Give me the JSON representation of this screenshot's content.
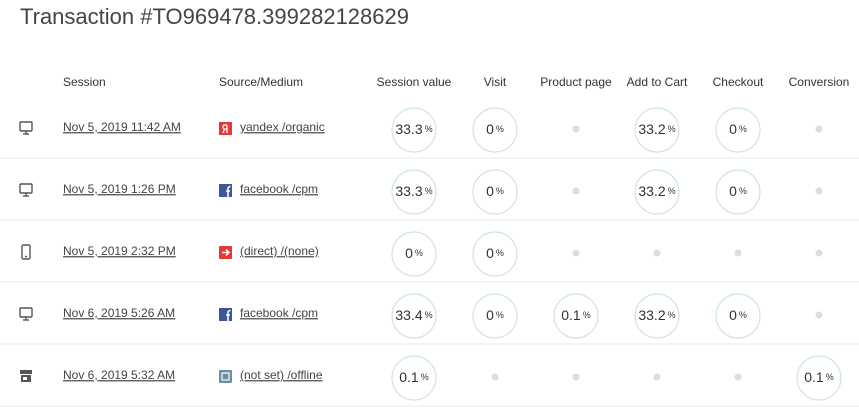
{
  "title": "Transaction #TO969478.399282128629",
  "table": {
    "columns": [
      "Session",
      "Source/Medium",
      "Session value",
      "Visit",
      "Product page",
      "Add to Cart",
      "Checkout",
      "Conversion"
    ],
    "unit": "%",
    "rows": [
      {
        "session": "Nov 5, 2019 11:42 AM",
        "source": "yandex /organic",
        "values": [
          33.3,
          0,
          null,
          33.2,
          0,
          null
        ]
      },
      {
        "session": "Nov 5, 2019 1:26 PM",
        "source": "facebook /cpm",
        "values": [
          33.3,
          0,
          null,
          33.2,
          0,
          null
        ]
      },
      {
        "session": "Nov 5, 2019 2:32 PM",
        "source": "(direct) /(none)",
        "values": [
          0,
          0,
          null,
          null,
          null,
          null
        ]
      },
      {
        "session": "Nov 6, 2019 5:26 AM",
        "source": "facebook /cpm",
        "values": [
          33.4,
          0,
          0.1,
          33.2,
          0,
          null
        ]
      },
      {
        "session": "Nov 6, 2019 5:32 AM",
        "source": "(not set) /offline",
        "values": [
          0.1,
          null,
          null,
          null,
          null,
          0.1
        ]
      }
    ]
  }
}
